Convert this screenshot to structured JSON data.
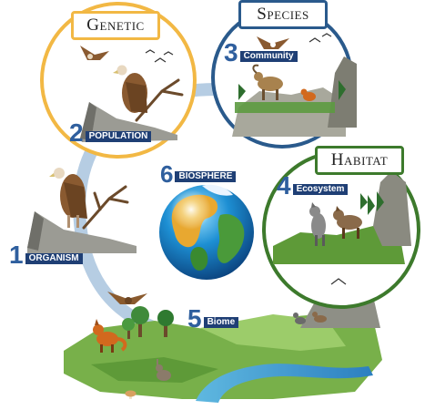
{
  "titles": {
    "genetic": "Genetic",
    "species": "Species",
    "habitat": "Habitat"
  },
  "levels": [
    {
      "number": "1",
      "label": "ORGANISM"
    },
    {
      "number": "2",
      "label": "POPULATION"
    },
    {
      "number": "3",
      "label": "Community"
    },
    {
      "number": "4",
      "label": "Ecosystem"
    },
    {
      "number": "5",
      "label": "Biome"
    },
    {
      "number": "6",
      "label": "BIOSPHERE"
    }
  ],
  "colors": {
    "genetic_ring": "#f2b844",
    "species_ring": "#2a5a8c",
    "habitat_ring": "#3d7a2c",
    "arc": "#a9c4de",
    "label_bg": "#1f3f75",
    "number": "#2f5f9e"
  }
}
